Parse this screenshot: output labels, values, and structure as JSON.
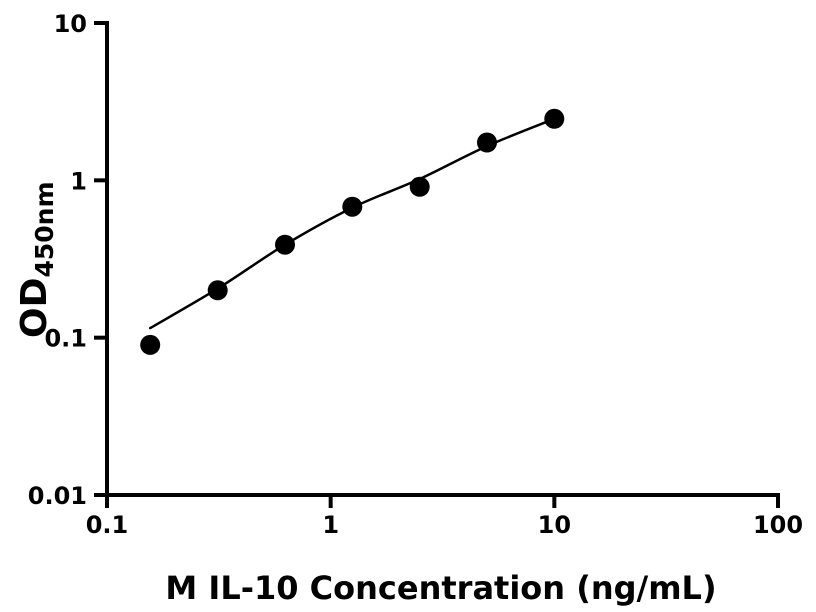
{
  "page": {
    "background_color": "#ffffff"
  },
  "chart_data": {
    "type": "scatter",
    "title": "",
    "xlabel": "M IL-10 Concentration (ng/mL)",
    "ylabel_main": "OD",
    "ylabel_sub": "450nm",
    "x_scale": "log",
    "y_scale": "log",
    "xlim": [
      0.1,
      100
    ],
    "ylim": [
      0.01,
      10
    ],
    "x_ticks": [
      {
        "value": 0.1,
        "label": "0.1"
      },
      {
        "value": 1,
        "label": "1"
      },
      {
        "value": 10,
        "label": "10"
      },
      {
        "value": 100,
        "label": "100"
      }
    ],
    "y_ticks": [
      {
        "value": 0.01,
        "label": "0.01"
      },
      {
        "value": 0.1,
        "label": "0.1"
      },
      {
        "value": 1,
        "label": "1"
      },
      {
        "value": 10,
        "label": "10"
      }
    ],
    "series": [
      {
        "name": "standards",
        "type": "scatter",
        "marker": "filled-circle",
        "color": "#000000",
        "x": [
          0.156,
          0.3125,
          0.625,
          1.25,
          2.5,
          5,
          10
        ],
        "y": [
          0.09,
          0.2,
          0.39,
          0.68,
          0.91,
          1.74,
          2.46
        ]
      },
      {
        "name": "fit-curve",
        "type": "line",
        "color": "#000000",
        "x": [
          0.156,
          0.3125,
          0.625,
          1.25,
          2.5,
          5,
          10
        ],
        "y": [
          0.115,
          0.205,
          0.39,
          0.67,
          1.02,
          1.65,
          2.46
        ]
      }
    ],
    "grid": false,
    "legend": "none",
    "colors": {
      "axis": "#000000",
      "marker": "#000000",
      "line": "#000000",
      "background": "#ffffff"
    }
  }
}
